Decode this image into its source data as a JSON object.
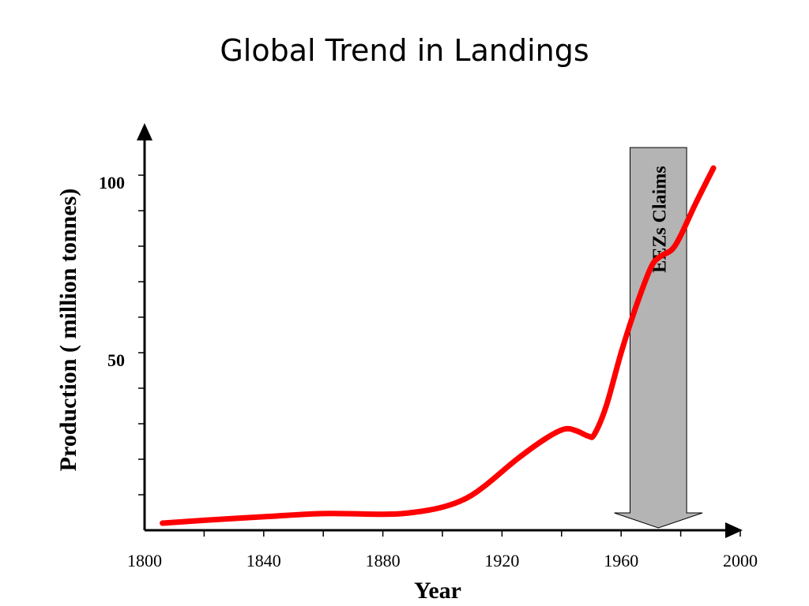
{
  "chart_data": {
    "type": "line",
    "title": "Global Trend in Landings",
    "xlabel": "Year",
    "ylabel": "Production (  million tonnes)",
    "xlim": [
      1800,
      2000
    ],
    "ylim": [
      0,
      110
    ],
    "x_ticks": [
      1800,
      1840,
      1880,
      1920,
      1960,
      2000
    ],
    "x_minor_ticks": [
      1820,
      1860,
      1900,
      1940,
      1980
    ],
    "y_ticks": [
      50,
      100
    ],
    "y_minor_ticks": [
      10,
      20,
      30,
      40,
      60,
      70,
      80,
      90
    ],
    "grid": false,
    "series": [
      {
        "color": "#ff0000",
        "x": [
          1806,
          1820,
          1840,
          1860,
          1880,
          1890,
          1900,
          1908,
          1915,
          1925,
          1935,
          1941,
          1945,
          1949,
          1951,
          1955,
          1960,
          1965,
          1970,
          1973,
          1977,
          1980,
          1985,
          1991
        ],
        "y": [
          2,
          2.8,
          3.8,
          4.7,
          4.5,
          5,
          6.5,
          9,
          13,
          20,
          26,
          28.5,
          28,
          26.5,
          27,
          35,
          50,
          63,
          74,
          77,
          79,
          83,
          92,
          102
        ]
      }
    ],
    "annotations": [
      {
        "text": "EEZs Claims",
        "type": "arrow-down",
        "x_start": 1963,
        "x_end": 1982,
        "color": "#b4b4b4"
      }
    ]
  }
}
